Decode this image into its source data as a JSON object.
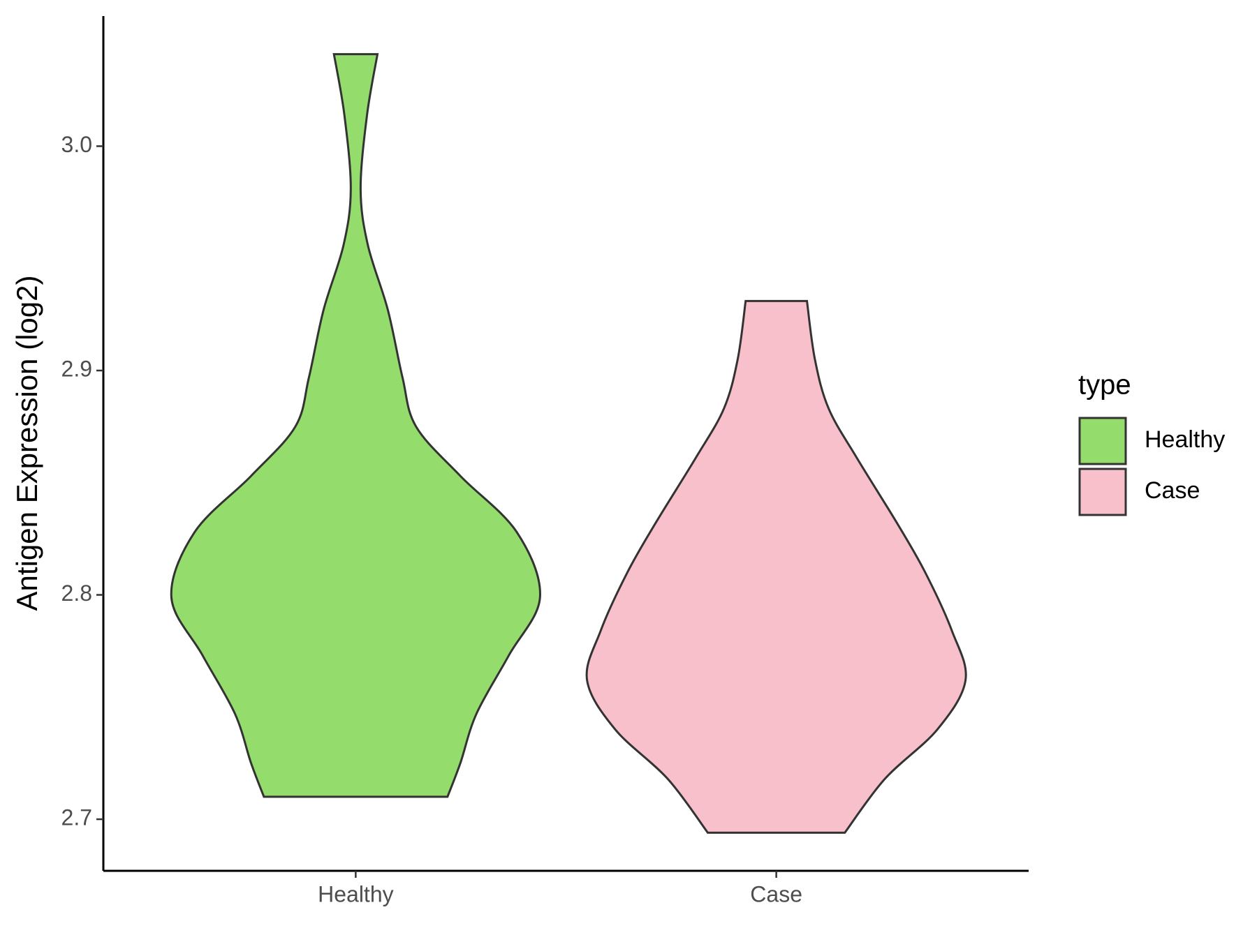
{
  "chart_data": {
    "type": "violin",
    "y_label": "Antigen Expression (log2)",
    "categories": [
      "Healthy",
      "Case"
    ],
    "legend_title": "type",
    "legend": "right",
    "ylim": [
      2.677,
      3.058
    ],
    "yticks": [
      2.7,
      2.8,
      2.9,
      {
        "value": 3,
        "label": "3.0"
      }
    ],
    "series": [
      {
        "name": "Healthy",
        "color": "#94dc6b",
        "y": [
          3.041,
          3.014,
          2.981,
          2.956,
          2.927,
          2.897,
          2.875,
          2.853,
          2.828,
          2.799,
          2.773,
          2.747,
          2.725,
          2.71
        ],
        "density": [
          0.115,
          0.06,
          0.026,
          0.064,
          0.17,
          0.247,
          0.319,
          0.553,
          0.851,
          0.974,
          0.809,
          0.638,
          0.553,
          0.485
        ]
      },
      {
        "name": "Case",
        "color": "#f7c0cb",
        "y": [
          2.931,
          2.905,
          2.883,
          2.861,
          2.832,
          2.81,
          2.784,
          2.762,
          2.74,
          2.718,
          2.694
        ],
        "density": [
          0.162,
          0.204,
          0.277,
          0.426,
          0.638,
          0.787,
          0.928,
          1,
          0.851,
          0.574,
          0.362
        ]
      }
    ]
  }
}
